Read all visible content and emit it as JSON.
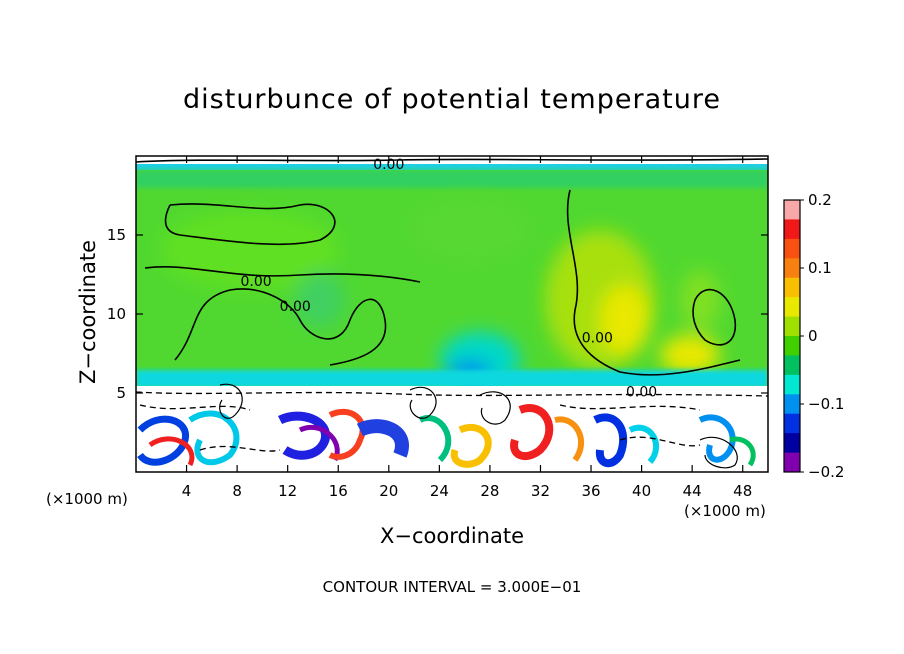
{
  "chart_data": {
    "type": "heatmap",
    "title": "disturbunce of potential temperature",
    "xlabel": "X−coordinate",
    "ylabel": "Z−coordinate",
    "x_unit_label": "(×1000 m)",
    "x_unit_label_right": "(×1000 m)",
    "xlim": [
      0,
      50
    ],
    "ylim": [
      0,
      20
    ],
    "x_ticks": [
      4,
      8,
      12,
      16,
      20,
      24,
      28,
      32,
      36,
      40,
      44,
      48
    ],
    "y_ticks": [
      5,
      10,
      15
    ],
    "colorbar": {
      "range": [
        -0.2,
        0.2
      ],
      "tick_values": [
        0.2,
        0.1,
        0,
        -0.1,
        -0.2
      ],
      "tick_labels": [
        "0.2",
        "0.1",
        "0",
        "−0.1",
        "−0.2"
      ],
      "colors": [
        "#f8a8a8",
        "#f01818",
        "#f85010",
        "#f88010",
        "#f8c000",
        "#e8e800",
        "#a0e000",
        "#40d000",
        "#00c060",
        "#00e8d0",
        "#0090f0",
        "#0030e0",
        "#0000a0",
        "#8000b0"
      ]
    },
    "contour_labels": [
      {
        "text": "0.00",
        "x": 20,
        "y": 19.5
      },
      {
        "text": "0.00",
        "x": 9.5,
        "y": 12.1
      },
      {
        "text": "0.00",
        "x": 12.6,
        "y": 10.5
      },
      {
        "text": "0.00",
        "x": 36.5,
        "y": 8.5
      },
      {
        "text": "0.00",
        "x": 40,
        "y": 5.1
      }
    ],
    "footer": "CONTOUR INTERVAL = 3.000E−01"
  }
}
